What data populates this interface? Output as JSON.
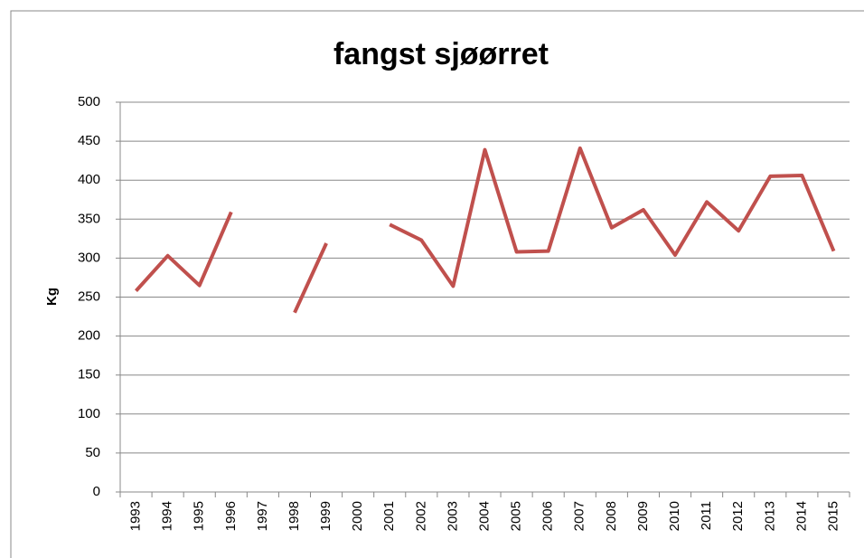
{
  "chart_data": {
    "type": "line",
    "title": "fangst sjøørret",
    "y_label": "Kg",
    "categories": [
      "1993",
      "1994",
      "1995",
      "1996",
      "1997",
      "1998",
      "1999",
      "2000",
      "2001",
      "2002",
      "2003",
      "2004",
      "2005",
      "2006",
      "2007",
      "2008",
      "2009",
      "2010",
      "2011",
      "2012",
      "2013",
      "2014",
      "2015"
    ],
    "series": [
      {
        "name": "fangst sjøørret",
        "color": "#c0504d",
        "values": [
          258,
          303,
          265,
          359,
          null,
          230,
          319,
          null,
          343,
          323,
          264,
          439,
          308,
          309,
          441,
          339,
          362,
          304,
          372,
          335,
          405,
          406,
          309
        ]
      }
    ],
    "ylim": [
      0,
      500
    ],
    "yticks": [
      0,
      50,
      100,
      150,
      200,
      250,
      300,
      350,
      400,
      450,
      500
    ],
    "grid": true
  }
}
